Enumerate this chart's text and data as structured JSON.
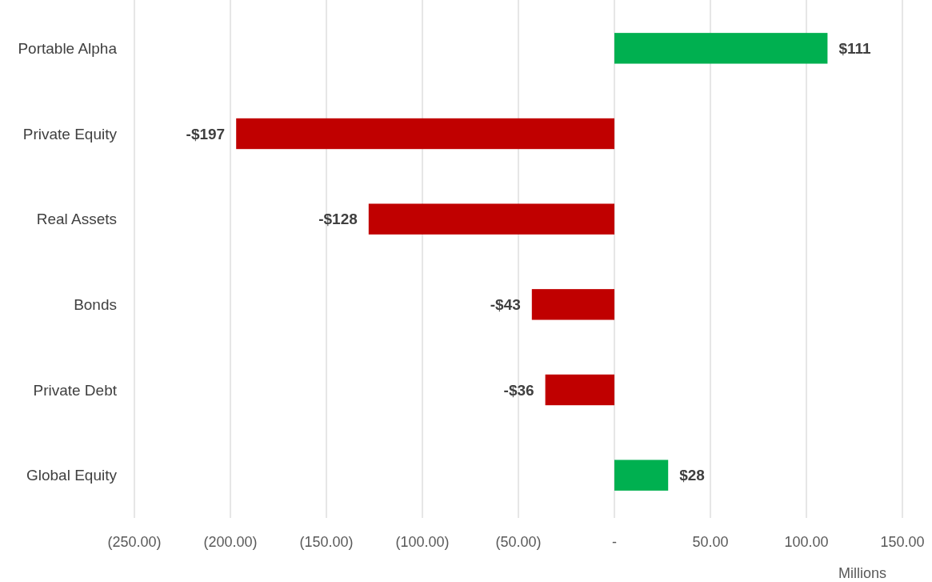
{
  "chart_data": {
    "type": "bar",
    "orientation": "horizontal",
    "xlabel": "Millions",
    "categories": [
      "Portable Alpha",
      "Private Equity",
      "Real Assets",
      "Bonds",
      "Private Debt",
      "Global Equity"
    ],
    "values": [
      111,
      -197,
      -128,
      -43,
      -36,
      28
    ],
    "colors": [
      "#00b050",
      "#c00000",
      "#c00000",
      "#c00000",
      "#c00000",
      "#00b050"
    ],
    "value_labels": [
      "$111",
      "-$197",
      "-$128",
      "-$43",
      "-$36",
      "$28"
    ],
    "xlim": [
      -250,
      150
    ],
    "xticks": [
      {
        "value": -250,
        "label": "(250.00)"
      },
      {
        "value": -200,
        "label": "(200.00)"
      },
      {
        "value": -150,
        "label": "(150.00)"
      },
      {
        "value": -100,
        "label": "(100.00)"
      },
      {
        "value": -50,
        "label": "(50.00)"
      },
      {
        "value": 0,
        "label": "-"
      },
      {
        "value": 50,
        "label": "50.00"
      },
      {
        "value": 100,
        "label": "100.00"
      },
      {
        "value": 150,
        "label": "150.00"
      }
    ],
    "grid": "x"
  }
}
